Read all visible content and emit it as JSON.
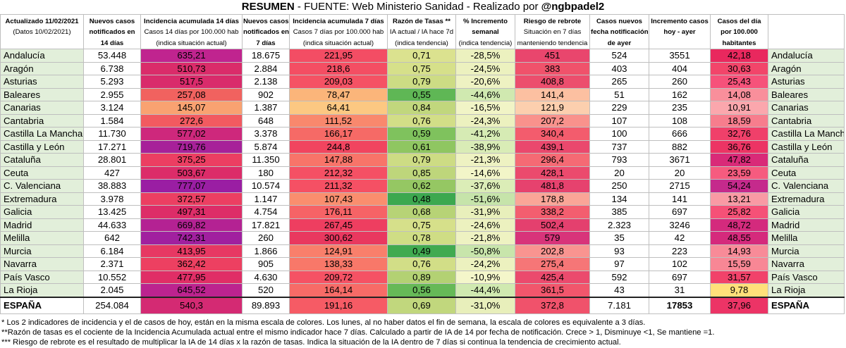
{
  "title": {
    "bold_prefix": "RESUMEN",
    "middle": " - FUENTE: Web Ministerio Sanidad  - Realizado por ",
    "bold_suffix": "@ngbpadel2"
  },
  "header": {
    "meta_line1": "Actualizado 11/02/2021",
    "meta_line2": "(Datos 10/02/2021)",
    "col1": [
      "Nuevos casos",
      "notificados en",
      "14 días"
    ],
    "col2_bold": "Incidencia acumulada 14 días",
    "col2_sub": [
      "Casos 14 días por 100.000 hab",
      "(indica situación actual)"
    ],
    "col3": [
      "Nuevos casos",
      "notificados en",
      "7 días"
    ],
    "col4_bold": "Incidencia acumulada 7 días",
    "col4_sub": [
      "Casos 7 días por 100.000 hab",
      "(indica situación actual)"
    ],
    "col5_bold": "Razón de Tasas **",
    "col5_sub": [
      "IA actual / IA hace 7d",
      "(indica tendencia)"
    ],
    "col6_bold": [
      "% Incremento",
      "semanal"
    ],
    "col6_sub": "(indica tendencia)",
    "col7_bold": "Riesgo de rebrote",
    "col7_sub": [
      "Situación en 7 días",
      "manteniendo tendencia"
    ],
    "col8": [
      "Casos nuevos",
      "fecha notificación",
      "de ayer"
    ],
    "col9": [
      "Incremento casos",
      "hoy - ayer"
    ],
    "col10": [
      "Casos del día",
      "por 100.000",
      "habitantes"
    ]
  },
  "colors": {
    "region_bg": "#e2efda",
    "neutral_bg": "#ffffff"
  },
  "rows": [
    {
      "name": "Andalucía",
      "c14": "53.448",
      "ia14": "635,21",
      "c7": "18.675",
      "ia7": "221,95",
      "rt": "0,71",
      "pct": "-28,5%",
      "rr": "451",
      "cn": "524",
      "inc": "3551",
      "cd": "42,18",
      "bg_ia14": "#c0248f",
      "bg_ia7": "#f34d64",
      "bg_rt": "#dbe28f",
      "bg_pct": "#ecf1bf",
      "bg_rr": "#e9466d",
      "bg_cd": "#e9285e"
    },
    {
      "name": "Aragón",
      "c14": "6.738",
      "ia14": "510,73",
      "c7": "2.884",
      "ia7": "218,6",
      "rt": "0,75",
      "pct": "-24,5%",
      "rr": "383",
      "cn": "403",
      "inc": "404",
      "cd": "30,63",
      "bg_ia14": "#da2c6a",
      "bg_ia7": "#f44e63",
      "bg_rt": "#d6e08a",
      "bg_pct": "#ecf1bf",
      "bg_rr": "#f0526b",
      "bg_cd": "#f2456a"
    },
    {
      "name": "Asturias",
      "c14": "5.293",
      "ia14": "517,5",
      "c7": "2.138",
      "ia7": "209,03",
      "rt": "0,79",
      "pct": "-20,6%",
      "rr": "408,8",
      "cn": "265",
      "inc": "260",
      "cd": "25,43",
      "bg_ia14": "#d92b6b",
      "bg_ia7": "#f55264",
      "bg_rt": "#cddc84",
      "bg_pct": "#eef2c2",
      "bg_rr": "#ec4e6d",
      "bg_cd": "#f6527a"
    },
    {
      "name": "Baleares",
      "c14": "2.955",
      "ia14": "257,08",
      "c7": "902",
      "ia7": "78,47",
      "rt": "0,55",
      "pct": "-44,6%",
      "rr": "141,4",
      "cn": "51",
      "inc": "162",
      "cd": "14,08",
      "bg_ia14": "#f1625f",
      "bg_ia7": "#fbb57a",
      "bg_rt": "#5fb755",
      "bg_pct": "#d0e9b0",
      "bg_rr": "#fcc0a1",
      "bg_cd": "#f98f9b"
    },
    {
      "name": "Canarias",
      "c14": "3.124",
      "ia14": "145,07",
      "c7": "1.387",
      "ia7": "64,41",
      "rt": "0,84",
      "pct": "-16,5%",
      "rr": "121,9",
      "cn": "229",
      "inc": "235",
      "cd": "10,91",
      "bg_ia14": "#f9a271",
      "bg_ia7": "#fcc882",
      "bg_rt": "#c1d77d",
      "bg_pct": "#f1f4c6",
      "bg_rr": "#fccfae",
      "bg_cd": "#fba7ad"
    },
    {
      "name": "Cantabria",
      "c14": "1.584",
      "ia14": "272,6",
      "c7": "648",
      "ia7": "111,52",
      "rt": "0,76",
      "pct": "-24,3%",
      "rr": "207,2",
      "cn": "107",
      "inc": "108",
      "cd": "18,59",
      "bg_ia14": "#f25a60",
      "bg_ia7": "#f9886d",
      "bg_rt": "#d2de87",
      "bg_pct": "#ecf1bf",
      "bg_rr": "#f9928c",
      "bg_cd": "#f77d8d"
    },
    {
      "name": "Castilla La Mancha",
      "c14": "11.730",
      "ia14": "577,02",
      "c7": "3.378",
      "ia7": "166,17",
      "rt": "0,59",
      "pct": "-41,2%",
      "rr": "340,4",
      "cn": "100",
      "inc": "666",
      "cd": "32,76",
      "bg_ia14": "#ce287c",
      "bg_ia7": "#f66a66",
      "bg_rt": "#7fc25d",
      "bg_pct": "#d6ebb4",
      "bg_rr": "#f35c6d",
      "bg_cd": "#f0406a"
    },
    {
      "name": "Castilla y León",
      "c14": "17.271",
      "ia14": "719,76",
      "c7": "5.874",
      "ia7": "244,8",
      "rt": "0,61",
      "pct": "-38,9%",
      "rr": "439,1",
      "cn": "737",
      "inc": "882",
      "cd": "36,76",
      "bg_ia14": "#a72199",
      "bg_ia7": "#f1445f",
      "bg_rt": "#8fc661",
      "bg_pct": "#d9ecb6",
      "bg_rr": "#ea486d",
      "bg_cd": "#ec3464"
    },
    {
      "name": "Cataluña",
      "c14": "28.801",
      "ia14": "375,25",
      "c7": "11.350",
      "ia7": "147,88",
      "rt": "0,79",
      "pct": "-21,3%",
      "rr": "296,4",
      "cn": "793",
      "inc": "3671",
      "cd": "47,82",
      "bg_ia14": "#ec3e62",
      "bg_ia7": "#f87469",
      "bg_rt": "#cddc84",
      "bg_pct": "#eef2c2",
      "bg_rr": "#f56a74",
      "bg_cd": "#d92a78"
    },
    {
      "name": "Ceuta",
      "c14": "427",
      "ia14": "503,67",
      "c7": "180",
      "ia7": "212,32",
      "rt": "0,85",
      "pct": "-14,6%",
      "rr": "428,1",
      "cn": "20",
      "inc": "20",
      "cd": "23,59",
      "bg_ia14": "#dc2c69",
      "bg_ia7": "#f55064",
      "bg_rt": "#bed67b",
      "bg_pct": "#f2f5c8",
      "bg_rr": "#eb4a6d",
      "bg_cd": "#f65b7f"
    },
    {
      "name": "C. Valenciana",
      "c14": "38.883",
      "ia14": "777,07",
      "c7": "10.574",
      "ia7": "211,32",
      "rt": "0,62",
      "pct": "-37,6%",
      "rr": "481,8",
      "cn": "250",
      "inc": "2715",
      "cd": "54,24",
      "bg_ia14": "#9a1ea3",
      "bg_ia7": "#f55064",
      "bg_rt": "#95c763",
      "bg_pct": "#dbedb7",
      "bg_rr": "#e6426e",
      "bg_cd": "#c52a8c"
    },
    {
      "name": "Extremadura",
      "c14": "3.978",
      "ia14": "372,57",
      "c7": "1.147",
      "ia7": "107,43",
      "rt": "0,48",
      "pct": "-51,6%",
      "rr": "178,8",
      "cn": "134",
      "inc": "141",
      "cd": "13,21",
      "bg_ia14": "#ec3f62",
      "bg_ia7": "#fa8e6e",
      "bg_rt": "#3ca84f",
      "bg_pct": "#c6e4aa",
      "bg_rr": "#faa597",
      "bg_cd": "#f99aa4"
    },
    {
      "name": "Galicia",
      "c14": "13.425",
      "ia14": "497,31",
      "c7": "4.754",
      "ia7": "176,11",
      "rt": "0,68",
      "pct": "-31,9%",
      "rr": "338,2",
      "cn": "385",
      "inc": "697",
      "cd": "25,82",
      "bg_ia14": "#dd2d68",
      "bg_ia7": "#f66366",
      "bg_rt": "#b7d376",
      "bg_pct": "#e8efbb",
      "bg_rr": "#f35e6f",
      "bg_cd": "#f55177"
    },
    {
      "name": "Madrid",
      "c14": "44.633",
      "ia14": "669,82",
      "c7": "17.821",
      "ia7": "267,45",
      "rt": "0,75",
      "pct": "-24,6%",
      "rr": "502,4",
      "cn": "2.323",
      "inc": "3246",
      "cd": "48,72",
      "bg_ia14": "#b42293",
      "bg_ia7": "#ee3e60",
      "bg_rt": "#d6e08a",
      "bg_pct": "#ecf1bf",
      "bg_rr": "#e4406e",
      "bg_cd": "#d42a7d"
    },
    {
      "name": "Melilla",
      "c14": "642",
      "ia14": "742,31",
      "c7": "260",
      "ia7": "300,62",
      "rt": "0,78",
      "pct": "-21,8%",
      "rr": "579",
      "cn": "35",
      "inc": "42",
      "cd": "48,55",
      "bg_ia14": "#a1209f",
      "bg_ia7": "#e9385f",
      "bg_rt": "#cfdd85",
      "bg_pct": "#eef2c2",
      "bg_rr": "#d8347a",
      "bg_cd": "#d52a7c"
    },
    {
      "name": "Murcia",
      "c14": "6.184",
      "ia14": "413,95",
      "c7": "1.866",
      "ia7": "124,91",
      "rt": "0,49",
      "pct": "-50,8%",
      "rr": "202,8",
      "cn": "93",
      "inc": "223",
      "cd": "14,93",
      "bg_ia14": "#e73863",
      "bg_ia7": "#f97f6b",
      "bg_rt": "#41aa50",
      "bg_pct": "#c8e5ab",
      "bg_rr": "#f99490",
      "bg_cd": "#f88b98"
    },
    {
      "name": "Navarra",
      "c14": "2.371",
      "ia14": "362,42",
      "c7": "905",
      "ia7": "138,33",
      "rt": "0,76",
      "pct": "-24,2%",
      "rr": "275,4",
      "cn": "97",
      "inc": "102",
      "cd": "15,59",
      "bg_ia14": "#ed4061",
      "bg_ia7": "#f87869",
      "bg_rt": "#d2de87",
      "bg_pct": "#ecf1bf",
      "bg_rr": "#f67677",
      "bg_cd": "#f88795"
    },
    {
      "name": "País Vasco",
      "c14": "10.552",
      "ia14": "477,95",
      "c7": "4.630",
      "ia7": "209,72",
      "rt": "0,89",
      "pct": "-10,9%",
      "rr": "425,4",
      "cn": "592",
      "inc": "697",
      "cd": "31,57",
      "bg_ia14": "#e02e66",
      "bg_ia7": "#f55264",
      "bg_rt": "#b3d173",
      "bg_pct": "#f4f6ca",
      "bg_rr": "#eb4a6d",
      "bg_cd": "#f1426a"
    },
    {
      "name": "La Rioja",
      "c14": "2.045",
      "ia14": "645,52",
      "c7": "520",
      "ia7": "164,14",
      "rt": "0,56",
      "pct": "-44,4%",
      "rr": "361,5",
      "cn": "43",
      "inc": "31",
      "cd": "9,78",
      "bg_ia14": "#bc238f",
      "bg_ia7": "#f76b67",
      "bg_rt": "#66b957",
      "bg_pct": "#d0e9b0",
      "bg_rr": "#f1566c",
      "bg_cd": "#ffe07a"
    }
  ],
  "total": {
    "name": "ESPAÑA",
    "c14": "254.084",
    "ia14": "540,3",
    "c7": "89.893",
    "ia7": "191,16",
    "rt": "0,69",
    "pct": "-31,0%",
    "rr": "372,8",
    "cn": "7.181",
    "inc": "17853",
    "cd": "37,96",
    "name_right": "ESPAÑA",
    "bg_ia14": "#d42a73",
    "bg_ia7": "#f65b65",
    "bg_rt": "#c1d77d",
    "bg_pct": "#e8efbb",
    "bg_rr": "#f0526b",
    "bg_cd": "#ec3466"
  },
  "notes": [
    "* Los 2 indicadores de incidencia y el de casos de hoy, están en la misma escala de colores. Los lunes, al no haber datos el fin de semana, la escala de colores es equivalente a 3 días.",
    "**Razón de tasas es el cociente de la Incidencia Acumulada actual entre el mismo indicador hace 7 días. Calculado a partir de IA de 14  por fecha de notificación. Crece > 1, Disminuye <1,  Se mantiene =1.",
    "*** Riesgo de rebrote es el resultado de multiplicar la IA de 14 días x la razón de tasas. Indica la situación de la IA dentro de 7 días si continua la tendencia de crecimiento actual."
  ]
}
